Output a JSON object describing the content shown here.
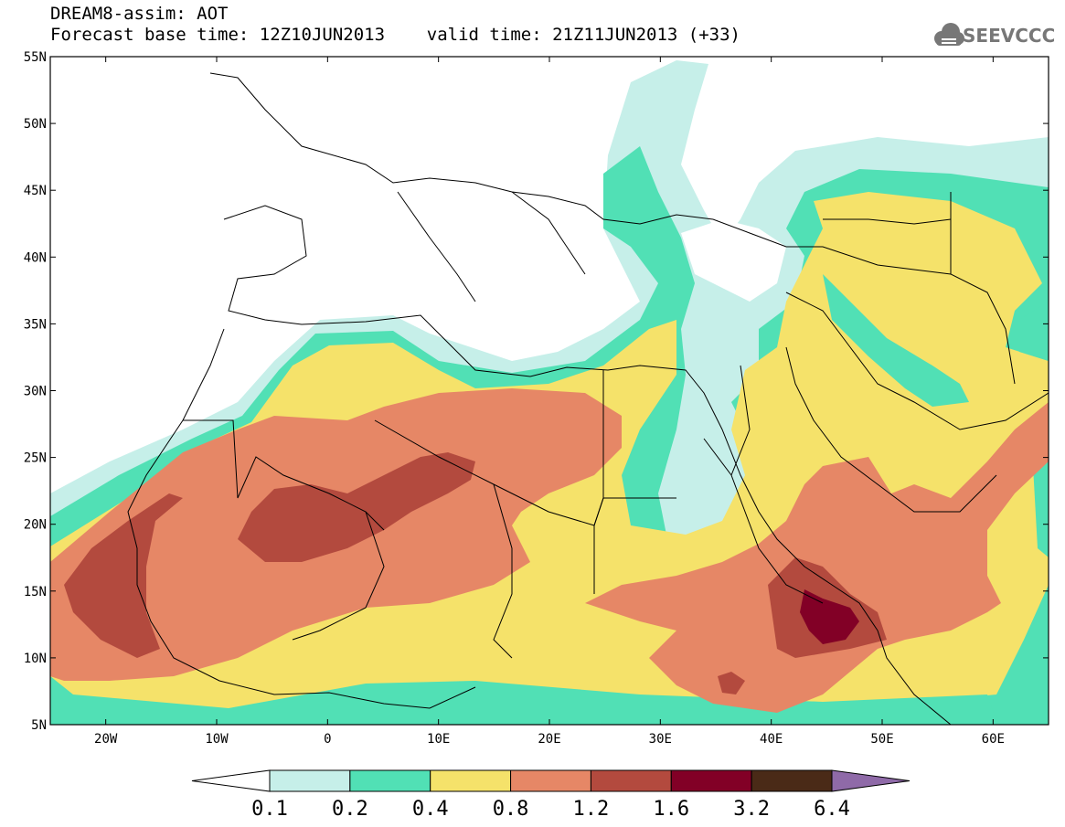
{
  "header": {
    "line1": "DREAM8-assim: AOT",
    "line2": "Forecast base time: 12Z10JUN2013    valid time: 21Z11JUN2013 (+33)",
    "logo_text": "SEEVCCC"
  },
  "map": {
    "lat_labels": [
      "55N",
      "50N",
      "45N",
      "40N",
      "35N",
      "30N",
      "25N",
      "20N",
      "15N",
      "10N",
      "5N"
    ],
    "lon_labels": [
      "20W",
      "10W",
      "0",
      "10E",
      "20E",
      "30E",
      "40E",
      "50E",
      "60E"
    ],
    "lon_range": [
      -25,
      65
    ],
    "lat_range": [
      5,
      55
    ],
    "field": "aerosol optical thickness"
  },
  "colorbar": {
    "levels": [
      "0.1",
      "0.2",
      "0.4",
      "0.8",
      "1.2",
      "1.6",
      "3.2",
      "6.4"
    ],
    "colors": [
      "#ffffff",
      "#c6efe9",
      "#51e0b5",
      "#f5e26a",
      "#e68766",
      "#b34a3e",
      "#820026",
      "#4a2a17",
      "#8f6aa8"
    ]
  }
}
